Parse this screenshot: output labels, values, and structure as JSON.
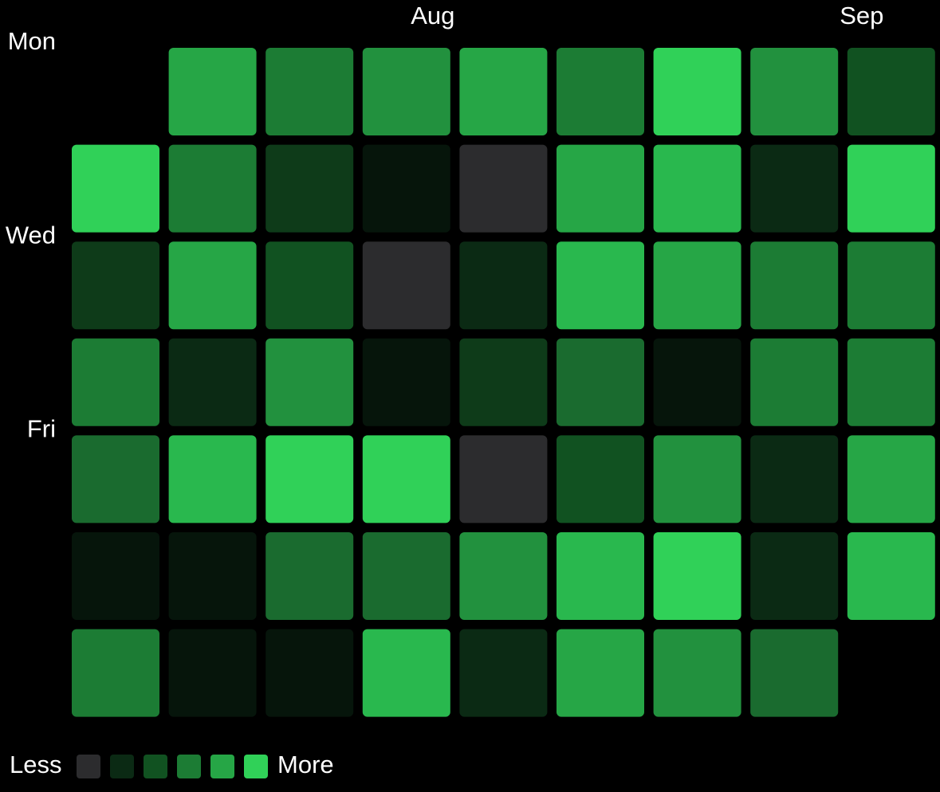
{
  "chart_data": {
    "type": "heatmap",
    "x_labels": [
      null,
      null,
      null,
      "Aug",
      null,
      null,
      null,
      null,
      "Sep"
    ],
    "y_labels": [
      "Mon",
      null,
      "Wed",
      null,
      "Fri",
      null,
      null
    ],
    "values": [
      [
        null,
        8,
        6,
        7,
        8,
        6,
        10,
        7,
        4
      ],
      [
        10,
        6,
        3,
        1,
        0,
        8,
        9,
        2,
        10
      ],
      [
        3,
        8,
        4,
        0,
        2,
        9,
        8,
        6,
        6
      ],
      [
        6,
        2,
        7,
        1,
        3,
        5,
        1,
        6,
        6
      ],
      [
        5,
        9,
        10,
        10,
        0,
        4,
        7,
        2,
        8
      ],
      [
        1,
        1,
        5,
        5,
        7,
        9,
        10,
        2,
        9
      ],
      [
        6,
        1,
        1,
        9,
        2,
        8,
        7,
        5,
        null
      ]
    ],
    "palette": [
      "#2c2c2e",
      "#06150b",
      "#0b2a14",
      "#0e3b19",
      "#115221",
      "#1a6b2f",
      "#1c7c34",
      "#22913e",
      "#26a646",
      "#29b84e",
      "#30d158"
    ],
    "legend": {
      "less": "Less",
      "more": "More",
      "colors": [
        "#2c2c2e",
        "#0b2a14",
        "#115221",
        "#1c7c34",
        "#26a646",
        "#30d158"
      ]
    }
  }
}
